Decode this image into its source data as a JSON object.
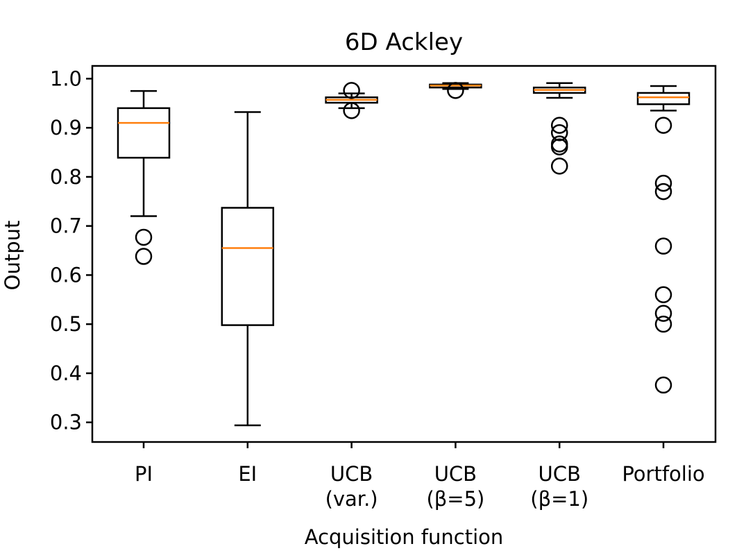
{
  "chart_data": {
    "type": "boxplot",
    "title": "6D Ackley",
    "xlabel": "Acquisition function",
    "ylabel": "Output",
    "ylim": [
      0.26,
      1.026
    ],
    "yticks": [
      "0.3",
      "0.4",
      "0.5",
      "0.6",
      "0.7",
      "0.8",
      "0.9",
      "1.0"
    ],
    "ytick_values": [
      0.3,
      0.4,
      0.5,
      0.6,
      0.7,
      0.8,
      0.9,
      1.0
    ],
    "grid": false,
    "colors": {
      "box": "#000000",
      "median": "#ff7f0e",
      "flier": "#000000"
    },
    "categories": [
      {
        "lines": [
          "PI"
        ],
        "whisker_low": 0.72,
        "q1": 0.839,
        "median": 0.91,
        "q3": 0.94,
        "whisker_high": 0.975,
        "fliers": [
          0.677,
          0.638
        ]
      },
      {
        "lines": [
          "EI"
        ],
        "whisker_low": 0.294,
        "q1": 0.498,
        "median": 0.655,
        "q3": 0.737,
        "whisker_high": 0.932,
        "fliers": []
      },
      {
        "lines": [
          "UCB",
          "(var.)"
        ],
        "whisker_low": 0.94,
        "q1": 0.951,
        "median": 0.957,
        "q3": 0.962,
        "whisker_high": 0.97,
        "fliers": [
          0.976,
          0.935
        ]
      },
      {
        "lines": [
          "UCB",
          "(β=5)"
        ],
        "whisker_low": 0.979,
        "q1": 0.982,
        "median": 0.986,
        "q3": 0.988,
        "whisker_high": 0.991,
        "fliers": [
          0.976
        ]
      },
      {
        "lines": [
          "UCB",
          "(β=1)"
        ],
        "whisker_low": 0.961,
        "q1": 0.971,
        "median": 0.977,
        "q3": 0.982,
        "whisker_high": 0.991,
        "fliers": [
          0.905,
          0.89,
          0.867,
          0.861,
          0.822
        ]
      },
      {
        "lines": [
          "Portfolio"
        ],
        "whisker_low": 0.935,
        "q1": 0.948,
        "median": 0.962,
        "q3": 0.971,
        "whisker_high": 0.985,
        "fliers": [
          0.905,
          0.787,
          0.77,
          0.659,
          0.56,
          0.522,
          0.5,
          0.376
        ]
      }
    ]
  }
}
